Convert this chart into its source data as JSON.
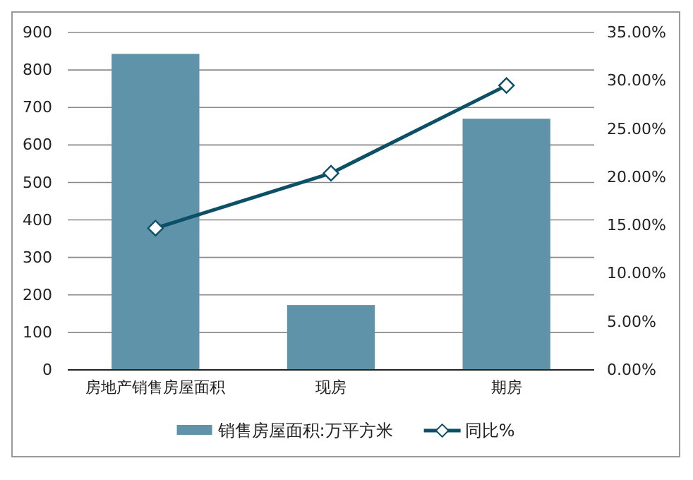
{
  "chart_data": {
    "type": "bar",
    "categories": [
      "房地产销售房屋面积",
      "现房",
      "期房"
    ],
    "series": [
      {
        "name": "销售房屋面积:万平方米",
        "color": "#5f93aa",
        "values": [
          843,
          173,
          670
        ]
      },
      {
        "name": "同比%",
        "type": "line",
        "axis": "y2",
        "color": "#0b5066",
        "marker": "diamond",
        "values": [
          14.7,
          20.4,
          29.5
        ]
      }
    ],
    "ylim": [
      0,
      900
    ],
    "yticks": [
      0,
      100,
      200,
      300,
      400,
      500,
      600,
      700,
      800,
      900
    ],
    "y2lim": [
      0,
      35
    ],
    "y2ticks": [
      {
        "value": 0,
        "label": "0.00%"
      },
      {
        "value": 5,
        "label": "5.00%"
      },
      {
        "value": 10,
        "label": "10.00%"
      },
      {
        "value": 15,
        "label": "15.00%"
      },
      {
        "value": 20,
        "label": "20.00%"
      },
      {
        "value": 25,
        "label": "25.00%"
      },
      {
        "value": 30,
        "label": "30.00%"
      },
      {
        "value": 35,
        "label": "35.00%"
      }
    ],
    "grid": "y",
    "legend": "bottom"
  }
}
